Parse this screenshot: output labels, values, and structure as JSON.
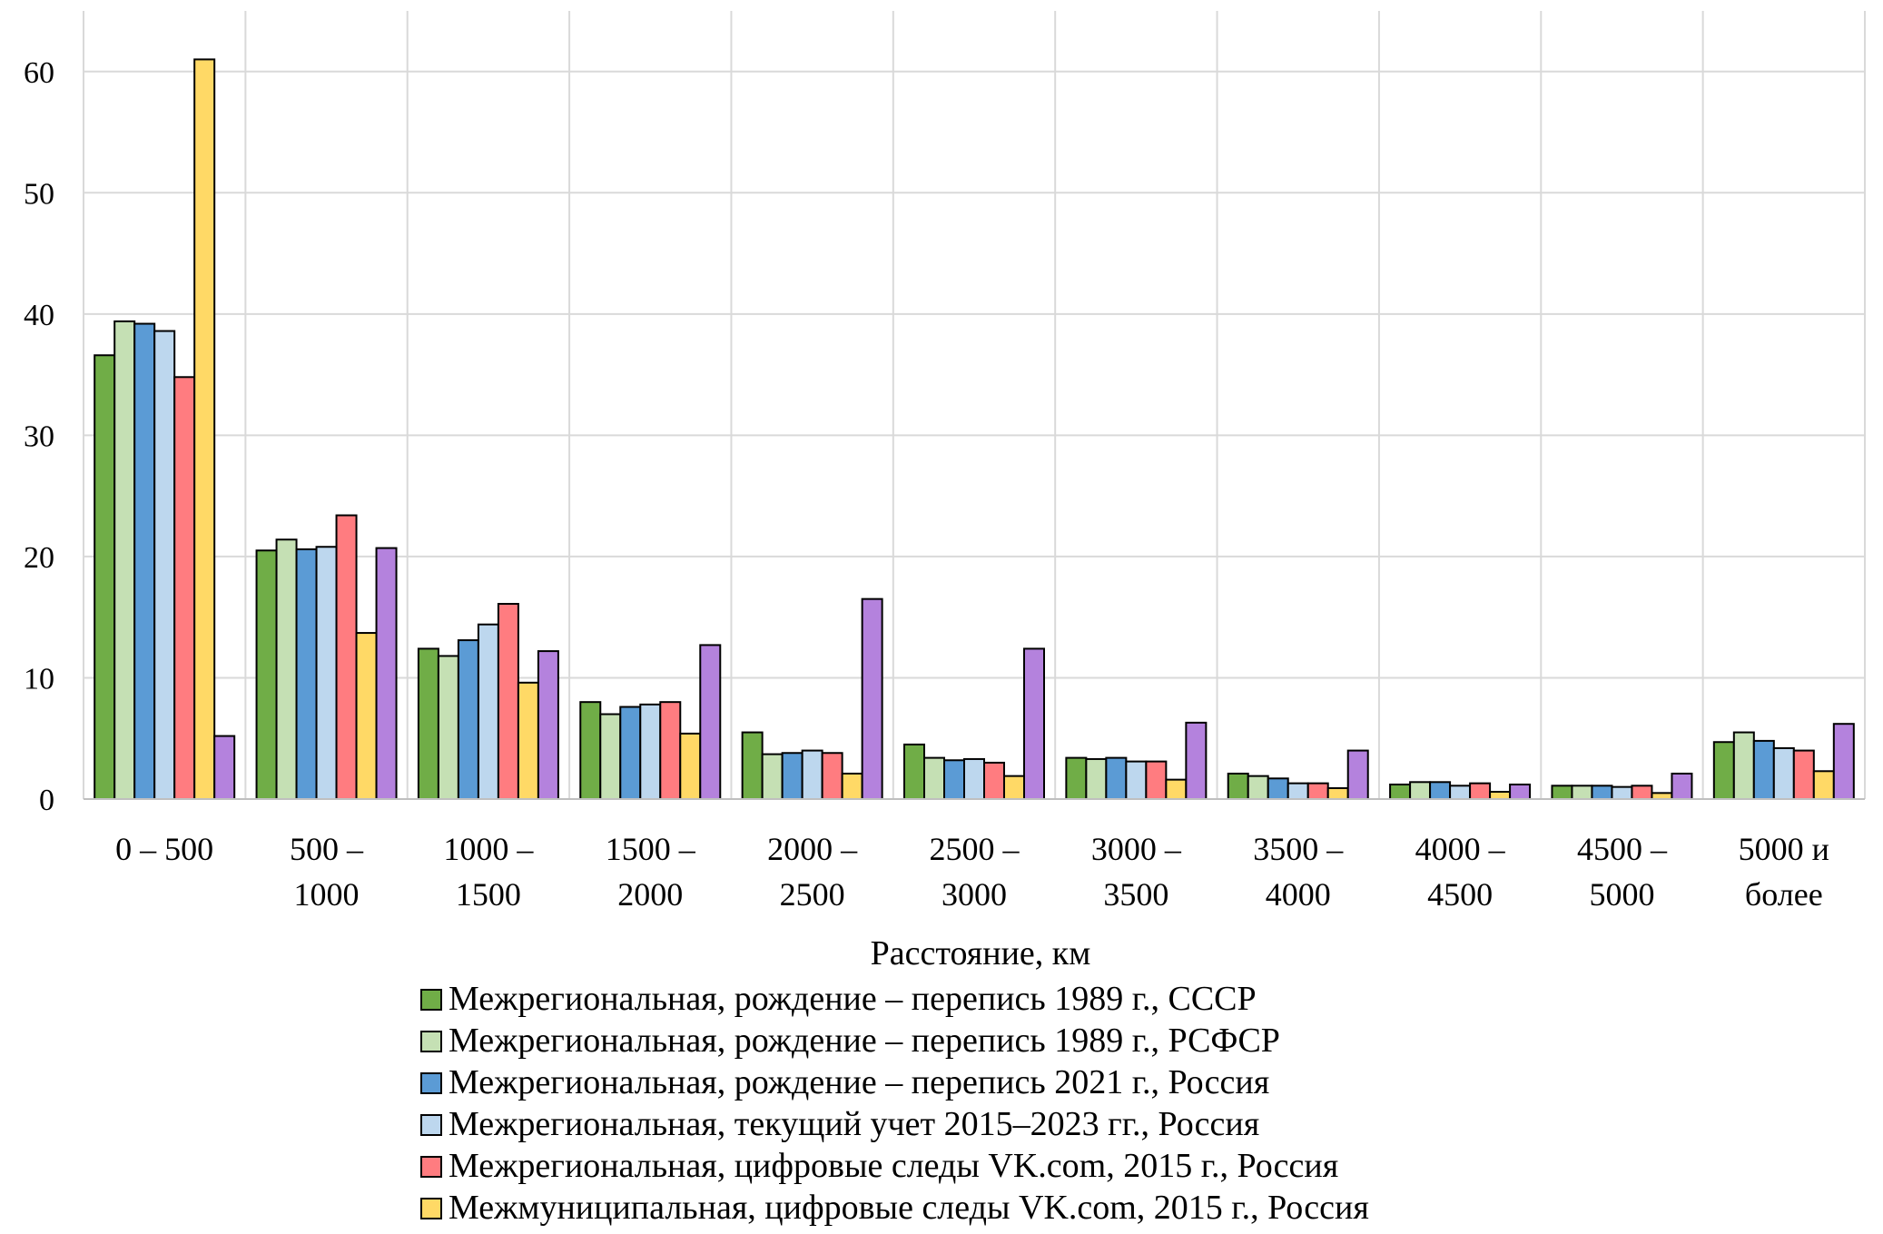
{
  "chart_data": {
    "type": "bar",
    "title": "",
    "xlabel": "Расстояние, км",
    "ylabel": "",
    "ylim": [
      0,
      65
    ],
    "yticks": [
      "0",
      "10",
      "20",
      "30",
      "40",
      "50",
      "60"
    ],
    "grid": true,
    "legend_position": "bottom",
    "categories": [
      [
        "0 – 500"
      ],
      [
        "500 –",
        "1000"
      ],
      [
        "1000 –",
        "1500"
      ],
      [
        "1500 –",
        "2000"
      ],
      [
        "2000 –",
        "2500"
      ],
      [
        "2500 –",
        "3000"
      ],
      [
        "3000 –",
        "3500"
      ],
      [
        "3500 –",
        "4000"
      ],
      [
        "4000 –",
        "4500"
      ],
      [
        "4500 –",
        "5000"
      ],
      [
        "5000 и",
        "более"
      ]
    ],
    "series": [
      {
        "name": "Межрегиональная, рождение – перепись 1989 г., СССР",
        "color": "#70ad47",
        "values": [
          36.6,
          20.5,
          12.4,
          8.0,
          5.5,
          4.5,
          3.4,
          2.1,
          1.2,
          1.1,
          4.7
        ]
      },
      {
        "name": "Межрегиональная, рождение – перепись 1989 г., РСФСР",
        "color": "#c5e0b4",
        "values": [
          39.4,
          21.4,
          11.8,
          7.0,
          3.7,
          3.4,
          3.3,
          1.9,
          1.4,
          1.1,
          5.5
        ]
      },
      {
        "name": "Межрегиональная, рождение – перепись 2021 г., Россия",
        "color": "#5b9bd5",
        "values": [
          39.2,
          20.6,
          13.1,
          7.6,
          3.8,
          3.2,
          3.4,
          1.7,
          1.4,
          1.1,
          4.8
        ]
      },
      {
        "name": "Межрегиональная, текущий учет 2015–2023 гг., Россия",
        "color": "#bdd7ee",
        "values": [
          38.6,
          20.8,
          14.4,
          7.8,
          4.0,
          3.3,
          3.1,
          1.3,
          1.1,
          1.0,
          4.2
        ]
      },
      {
        "name": "Межрегиональная, цифровые следы VK.com, 2015 г., Россия",
        "color": "#ff7c80",
        "values": [
          34.8,
          23.4,
          16.1,
          8.0,
          3.8,
          3.0,
          3.1,
          1.3,
          1.3,
          1.1,
          4.0
        ]
      },
      {
        "name": "Межмуниципальная, цифровые следы VK.com, 2015 г., Россия",
        "color": "#ffd966",
        "values": [
          61.0,
          13.7,
          9.6,
          5.4,
          2.1,
          1.9,
          1.6,
          0.9,
          0.6,
          0.5,
          2.3
        ]
      },
      {
        "name": "",
        "color": "#b482dd",
        "values": [
          5.2,
          20.7,
          12.2,
          12.7,
          16.5,
          12.4,
          6.3,
          4.0,
          1.2,
          2.1,
          6.2
        ]
      }
    ]
  }
}
